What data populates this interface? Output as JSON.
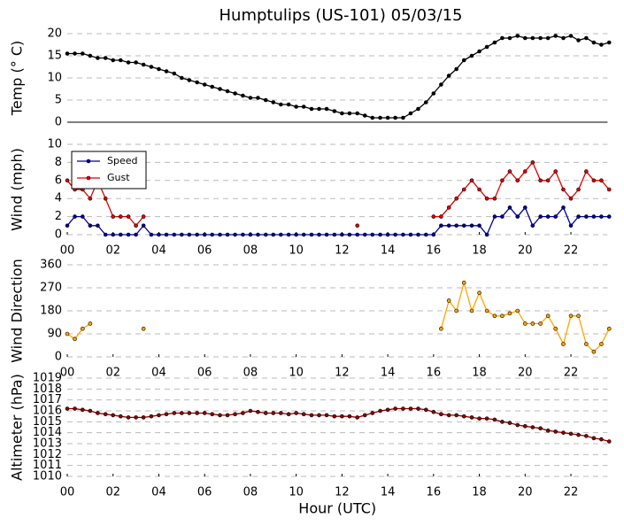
{
  "chart_data": [
    {
      "type": "line",
      "title": "Humptulips (US-101) 05/03/15",
      "ylabel": "Temp (° C)",
      "x": [
        0,
        0.33,
        0.67,
        1,
        1.33,
        1.67,
        2,
        2.33,
        2.67,
        3,
        3.33,
        3.67,
        4,
        4.33,
        4.67,
        5,
        5.33,
        5.67,
        6,
        6.33,
        6.67,
        7,
        7.33,
        7.67,
        8,
        8.33,
        8.67,
        9,
        9.33,
        9.67,
        10,
        10.33,
        10.67,
        11,
        11.33,
        11.67,
        12,
        12.33,
        12.67,
        13,
        13.33,
        13.67,
        14,
        14.33,
        14.67,
        15,
        15.33,
        15.67,
        16,
        16.33,
        16.67,
        17,
        17.33,
        17.67,
        18,
        18.33,
        18.67,
        19,
        19.33,
        19.67,
        20,
        20.33,
        20.67,
        21,
        21.33,
        21.67,
        22,
        22.33,
        22.67,
        23,
        23.33,
        23.67
      ],
      "series": [
        {
          "name": "Temp",
          "color": "#000000",
          "values": [
            15.5,
            15.5,
            15.5,
            15,
            14.5,
            14.5,
            14,
            14,
            13.5,
            13.5,
            13,
            12.5,
            12,
            11.5,
            11,
            10,
            9.5,
            9,
            8.5,
            8,
            7.5,
            7,
            6.5,
            6,
            5.5,
            5.5,
            5,
            4.5,
            4,
            4,
            3.5,
            3.5,
            3,
            3,
            3,
            2.5,
            2,
            2,
            2,
            1.5,
            1,
            1,
            1,
            1,
            1,
            2,
            3,
            4.5,
            6.5,
            8.5,
            10.5,
            12,
            14,
            15,
            16,
            17,
            18,
            19,
            19,
            19.5,
            19,
            19,
            19,
            19,
            19.5,
            19,
            19.5,
            18.5,
            19,
            18,
            17.5,
            18
          ]
        }
      ],
      "xlim": [
        0,
        23.6
      ],
      "ylim": [
        0,
        20
      ],
      "yticks": [
        0,
        5,
        10,
        15,
        20
      ],
      "grid": true
    },
    {
      "type": "line",
      "ylabel": "Wind (mph)",
      "x": [
        0,
        0.33,
        0.67,
        1,
        1.33,
        1.67,
        2,
        2.33,
        2.67,
        3,
        3.33,
        3.67,
        4,
        4.33,
        4.67,
        5,
        5.33,
        5.67,
        6,
        6.33,
        6.67,
        7,
        7.33,
        7.67,
        8,
        8.33,
        8.67,
        9,
        9.33,
        9.67,
        10,
        10.33,
        10.67,
        11,
        11.33,
        11.67,
        12,
        12.33,
        12.67,
        13,
        13.33,
        13.67,
        14,
        14.33,
        14.67,
        15,
        15.33,
        15.67,
        16,
        16.33,
        16.67,
        17,
        17.33,
        17.67,
        18,
        18.33,
        18.67,
        19,
        19.33,
        19.67,
        20,
        20.33,
        20.67,
        21,
        21.33,
        21.67,
        22,
        22.33,
        22.67,
        23,
        23.33,
        23.67
      ],
      "series": [
        {
          "name": "Speed",
          "color": "#0000a0",
          "values": [
            1,
            2,
            2,
            1,
            1,
            0,
            0,
            0,
            0,
            0,
            1,
            0,
            0,
            0,
            0,
            0,
            0,
            0,
            0,
            0,
            0,
            0,
            0,
            0,
            0,
            0,
            0,
            0,
            0,
            0,
            0,
            0,
            0,
            0,
            0,
            0,
            0,
            0,
            0,
            0,
            0,
            0,
            0,
            0,
            0,
            0,
            0,
            0,
            0,
            1,
            1,
            1,
            1,
            1,
            1,
            0,
            2,
            2,
            3,
            2,
            3,
            1,
            2,
            2,
            2,
            3,
            1,
            2,
            2,
            2,
            2,
            2
          ]
        },
        {
          "name": "Gust",
          "color": "#e00000",
          "values": [
            6,
            5,
            5,
            4,
            6,
            4,
            2,
            2,
            2,
            1,
            2,
            null,
            null,
            null,
            null,
            null,
            null,
            null,
            null,
            null,
            null,
            null,
            null,
            null,
            null,
            null,
            null,
            null,
            null,
            null,
            null,
            null,
            null,
            null,
            null,
            null,
            null,
            null,
            1,
            null,
            null,
            null,
            null,
            null,
            null,
            null,
            null,
            null,
            2,
            2,
            3,
            4,
            5,
            6,
            5,
            4,
            4,
            6,
            7,
            6,
            7,
            8,
            6,
            6,
            7,
            5,
            4,
            5,
            7,
            6,
            6,
            5
          ]
        }
      ],
      "xlim": [
        0,
        23.6
      ],
      "ylim": [
        0,
        10
      ],
      "yticks": [
        0,
        2,
        4,
        6,
        8,
        10
      ],
      "xticks": [
        {
          "value": 0,
          "label": "00"
        },
        {
          "value": 2,
          "label": "02"
        },
        {
          "value": 4,
          "label": "04"
        },
        {
          "value": 6,
          "label": "06"
        },
        {
          "value": 8,
          "label": "08"
        },
        {
          "value": 10,
          "label": "10"
        },
        {
          "value": 12,
          "label": "12"
        },
        {
          "value": 14,
          "label": "14"
        },
        {
          "value": 16,
          "label": "16"
        },
        {
          "value": 18,
          "label": "18"
        },
        {
          "value": 20,
          "label": "20"
        },
        {
          "value": 22,
          "label": "22"
        }
      ],
      "grid": true,
      "legend": "upper left"
    },
    {
      "type": "line",
      "ylabel": "Wind Direction",
      "x": [
        0,
        0.33,
        0.67,
        1,
        1.33,
        1.67,
        2,
        2.33,
        2.67,
        3,
        3.33,
        3.67,
        4,
        4.33,
        4.67,
        5,
        5.33,
        5.67,
        6,
        6.33,
        6.67,
        7,
        7.33,
        7.67,
        8,
        8.33,
        8.67,
        9,
        9.33,
        9.67,
        10,
        10.33,
        10.67,
        11,
        11.33,
        11.67,
        12,
        12.33,
        12.67,
        13,
        13.33,
        13.67,
        14,
        14.33,
        14.67,
        15,
        15.33,
        15.67,
        16,
        16.33,
        16.67,
        17,
        17.33,
        17.67,
        18,
        18.33,
        18.67,
        19,
        19.33,
        19.67,
        20,
        20.33,
        20.67,
        21,
        21.33,
        21.67,
        22,
        22.33,
        22.67,
        23,
        23.33,
        23.67
      ],
      "series": [
        {
          "name": "Direction",
          "color": "#ffa500",
          "values": [
            90,
            70,
            110,
            130,
            null,
            null,
            null,
            null,
            null,
            null,
            110,
            null,
            null,
            null,
            null,
            null,
            null,
            null,
            null,
            null,
            null,
            null,
            null,
            null,
            null,
            null,
            null,
            null,
            null,
            null,
            null,
            null,
            null,
            null,
            null,
            null,
            null,
            null,
            null,
            null,
            null,
            null,
            null,
            null,
            null,
            null,
            null,
            null,
            null,
            110,
            220,
            180,
            290,
            180,
            250,
            180,
            160,
            160,
            170,
            180,
            130,
            130,
            130,
            160,
            110,
            50,
            160,
            160,
            50,
            20,
            50,
            110
          ]
        }
      ],
      "xlim": [
        0,
        23.6
      ],
      "ylim": [
        0,
        360
      ],
      "yticks": [
        0,
        90,
        180,
        270,
        360
      ],
      "xticks": [
        {
          "value": 0,
          "label": "00"
        },
        {
          "value": 2,
          "label": "02"
        },
        {
          "value": 4,
          "label": "04"
        },
        {
          "value": 6,
          "label": "06"
        },
        {
          "value": 8,
          "label": "08"
        },
        {
          "value": 10,
          "label": "10"
        },
        {
          "value": 12,
          "label": "12"
        },
        {
          "value": 14,
          "label": "14"
        },
        {
          "value": 16,
          "label": "16"
        },
        {
          "value": 18,
          "label": "18"
        },
        {
          "value": 20,
          "label": "20"
        },
        {
          "value": 22,
          "label": "22"
        }
      ],
      "grid": true
    },
    {
      "type": "line",
      "ylabel": "Altimeter (hPa)",
      "xlabel": "Hour (UTC)",
      "x": [
        0,
        0.33,
        0.67,
        1,
        1.33,
        1.67,
        2,
        2.33,
        2.67,
        3,
        3.33,
        3.67,
        4,
        4.33,
        4.67,
        5,
        5.33,
        5.67,
        6,
        6.33,
        6.67,
        7,
        7.33,
        7.67,
        8,
        8.33,
        8.67,
        9,
        9.33,
        9.67,
        10,
        10.33,
        10.67,
        11,
        11.33,
        11.67,
        12,
        12.33,
        12.67,
        13,
        13.33,
        13.67,
        14,
        14.33,
        14.67,
        15,
        15.33,
        15.67,
        16,
        16.33,
        16.67,
        17,
        17.33,
        17.67,
        18,
        18.33,
        18.67,
        19,
        19.33,
        19.67,
        20,
        20.33,
        20.67,
        21,
        21.33,
        21.67,
        22,
        22.33,
        22.67,
        23,
        23.33,
        23.67
      ],
      "series": [
        {
          "name": "Altimeter",
          "color": "#8b0000",
          "values": [
            1016.2,
            1016.2,
            1016.1,
            1016.0,
            1015.8,
            1015.7,
            1015.6,
            1015.5,
            1015.4,
            1015.4,
            1015.4,
            1015.5,
            1015.6,
            1015.7,
            1015.8,
            1015.8,
            1015.8,
            1015.8,
            1015.8,
            1015.7,
            1015.6,
            1015.6,
            1015.7,
            1015.8,
            1016.0,
            1015.9,
            1015.8,
            1015.8,
            1015.8,
            1015.7,
            1015.8,
            1015.7,
            1015.6,
            1015.6,
            1015.6,
            1015.5,
            1015.5,
            1015.5,
            1015.4,
            1015.6,
            1015.8,
            1016.0,
            1016.1,
            1016.2,
            1016.2,
            1016.2,
            1016.2,
            1016.1,
            1015.9,
            1015.7,
            1015.6,
            1015.6,
            1015.5,
            1015.4,
            1015.3,
            1015.3,
            1015.2,
            1015.0,
            1014.9,
            1014.7,
            1014.6,
            1014.5,
            1014.4,
            1014.2,
            1014.1,
            1014.0,
            1013.9,
            1013.8,
            1013.7,
            1013.5,
            1013.4,
            1013.2
          ]
        }
      ],
      "xlim": [
        0,
        23.6
      ],
      "ylim": [
        1010,
        1019
      ],
      "yticks": [
        1010,
        1011,
        1012,
        1013,
        1014,
        1015,
        1016,
        1017,
        1018,
        1019
      ],
      "xticks": [
        {
          "value": 0,
          "label": "00"
        },
        {
          "value": 2,
          "label": "02"
        },
        {
          "value": 4,
          "label": "04"
        },
        {
          "value": 6,
          "label": "06"
        },
        {
          "value": 8,
          "label": "08"
        },
        {
          "value": 10,
          "label": "10"
        },
        {
          "value": 12,
          "label": "12"
        },
        {
          "value": 14,
          "label": "14"
        },
        {
          "value": 16,
          "label": "16"
        },
        {
          "value": 18,
          "label": "18"
        },
        {
          "value": 20,
          "label": "20"
        },
        {
          "value": 22,
          "label": "22"
        }
      ],
      "grid": true
    }
  ]
}
